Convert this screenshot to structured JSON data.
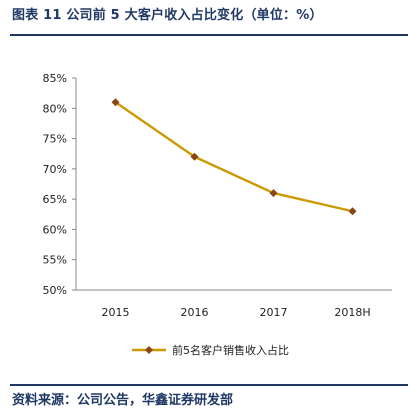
{
  "figure": {
    "title": "图表 11 公司前 5 大客户收入占比变化（单位：%）",
    "source": "资料来源：公司公告，华鑫证券研发部"
  },
  "chart_data": {
    "type": "line",
    "categories": [
      "2015",
      "2016",
      "2017",
      "2018H"
    ],
    "series": [
      {
        "name": "前5名客户销售收入占比",
        "values": [
          81,
          72,
          66,
          63
        ],
        "color": "#cc9900"
      }
    ],
    "ylim": [
      50,
      85
    ],
    "yticks": [
      50,
      55,
      60,
      65,
      70,
      75,
      80,
      85
    ],
    "ytick_labels": [
      "50%",
      "55%",
      "60%",
      "65%",
      "70%",
      "75%",
      "80%",
      "85%"
    ],
    "marker": "diamond",
    "marker_color": "#8b4513",
    "grid": false,
    "legend_position": "bottom"
  }
}
